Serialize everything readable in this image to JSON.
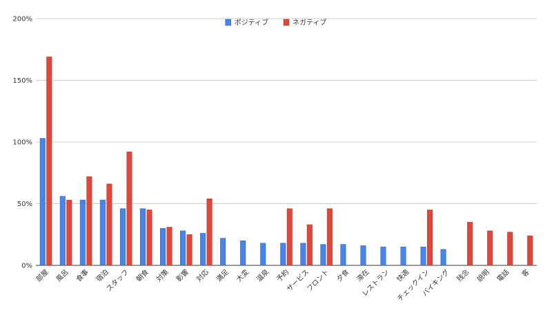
{
  "chart_data": {
    "type": "bar",
    "title": "",
    "xlabel": "",
    "ylabel": "",
    "ylim": [
      0,
      200
    ],
    "y_ticks": [
      "0%",
      "50%",
      "100%",
      "150%",
      "200%"
    ],
    "grid": true,
    "legend_position": "top",
    "categories": [
      "部屋",
      "風呂",
      "食事",
      "宿泊",
      "スタッフ",
      "朝食",
      "対策",
      "影響",
      "対応",
      "満足",
      "大変",
      "温泉",
      "予約",
      "サービス",
      "フロント",
      "夕食",
      "滞在",
      "レストラン",
      "快適",
      "チェックイン",
      "バイキング",
      "残念",
      "説明",
      "電話",
      "客"
    ],
    "series": [
      {
        "name": "ポジティブ",
        "color": "#4285f4",
        "values": [
          103,
          56,
          53,
          53,
          46,
          46,
          30,
          28,
          26,
          22,
          20,
          18,
          18,
          18,
          17,
          17,
          16,
          15,
          15,
          15,
          13,
          null,
          null,
          null,
          null
        ]
      },
      {
        "name": "ネガティブ",
        "color": "#ea4335",
        "values": [
          169,
          53,
          72,
          66,
          92,
          45,
          31,
          25,
          54,
          null,
          null,
          null,
          46,
          33,
          46,
          null,
          null,
          null,
          null,
          45,
          null,
          35,
          28,
          27,
          24
        ]
      }
    ]
  }
}
